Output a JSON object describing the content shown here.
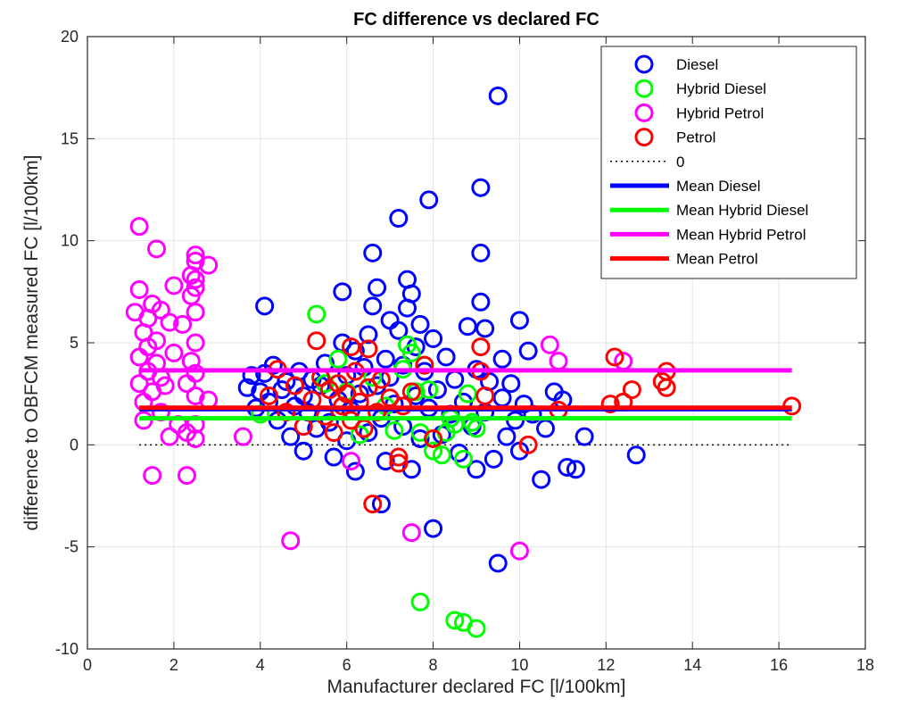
{
  "chart_data": {
    "type": "scatter",
    "title": "FC difference vs declared FC",
    "xlabel": "Manufacturer declared FC [l/100km]",
    "ylabel": "difference to OBFCM measured FC [l/100km]",
    "xlim": [
      0,
      18
    ],
    "ylim": [
      -10,
      20
    ],
    "xticks": [
      0,
      2,
      4,
      6,
      8,
      10,
      12,
      14,
      16,
      18
    ],
    "yticks": [
      -10,
      -5,
      0,
      5,
      10,
      15,
      20
    ],
    "grid": true,
    "legend_position": "top-right",
    "series": [
      {
        "name": "Diesel",
        "marker": "circle-open",
        "color": "#0000ff",
        "points": [
          [
            3.7,
            2.8
          ],
          [
            3.8,
            3.4
          ],
          [
            3.9,
            1.8
          ],
          [
            4.0,
            2.6
          ],
          [
            4.1,
            3.5
          ],
          [
            4.1,
            6.8
          ],
          [
            4.2,
            2.1
          ],
          [
            4.3,
            3.9
          ],
          [
            4.4,
            1.2
          ],
          [
            4.5,
            2.7
          ],
          [
            4.6,
            3.1
          ],
          [
            4.7,
            0.4
          ],
          [
            4.8,
            1.9
          ],
          [
            4.9,
            3.6
          ],
          [
            5.0,
            2.4
          ],
          [
            5.0,
            -0.3
          ],
          [
            5.1,
            1.6
          ],
          [
            5.2,
            3.2
          ],
          [
            5.3,
            0.8
          ],
          [
            5.4,
            2.9
          ],
          [
            5.5,
            4.0
          ],
          [
            5.6,
            1.1
          ],
          [
            5.7,
            -0.6
          ],
          [
            5.8,
            2.2
          ],
          [
            5.9,
            5.0
          ],
          [
            5.9,
            7.5
          ],
          [
            6.0,
            3.4
          ],
          [
            6.0,
            0.2
          ],
          [
            6.1,
            1.7
          ],
          [
            6.2,
            4.6
          ],
          [
            6.2,
            -1.3
          ],
          [
            6.3,
            2.5
          ],
          [
            6.4,
            3.8
          ],
          [
            6.5,
            5.4
          ],
          [
            6.5,
            0.6
          ],
          [
            6.6,
            9.4
          ],
          [
            6.6,
            6.8
          ],
          [
            6.7,
            7.7
          ],
          [
            6.7,
            2.9
          ],
          [
            6.8,
            -2.9
          ],
          [
            6.8,
            1.3
          ],
          [
            6.9,
            4.2
          ],
          [
            6.9,
            -0.8
          ],
          [
            7.0,
            6.1
          ],
          [
            7.0,
            3.3
          ],
          [
            7.1,
            2.0
          ],
          [
            7.2,
            11.1
          ],
          [
            7.2,
            5.6
          ],
          [
            7.3,
            0.9
          ],
          [
            7.3,
            3.9
          ],
          [
            7.4,
            8.1
          ],
          [
            7.4,
            6.7
          ],
          [
            7.5,
            7.4
          ],
          [
            7.5,
            -1.2
          ],
          [
            7.6,
            4.8
          ],
          [
            7.6,
            2.4
          ],
          [
            7.7,
            5.9
          ],
          [
            7.7,
            0.3
          ],
          [
            7.8,
            3.6
          ],
          [
            7.9,
            12.0
          ],
          [
            7.9,
            1.8
          ],
          [
            8.0,
            -4.1
          ],
          [
            8.0,
            5.2
          ],
          [
            8.1,
            2.7
          ],
          [
            8.2,
            0.5
          ],
          [
            8.3,
            4.3
          ],
          [
            8.4,
            1.5
          ],
          [
            8.5,
            3.2
          ],
          [
            8.6,
            -0.4
          ],
          [
            8.7,
            2.1
          ],
          [
            8.8,
            5.8
          ],
          [
            8.9,
            0.9
          ],
          [
            9.0,
            3.7
          ],
          [
            9.0,
            -1.2
          ],
          [
            9.1,
            12.6
          ],
          [
            9.1,
            9.4
          ],
          [
            9.1,
            7.0
          ],
          [
            9.2,
            5.7
          ],
          [
            9.2,
            1.6
          ],
          [
            9.3,
            3.1
          ],
          [
            9.4,
            -0.7
          ],
          [
            9.5,
            17.1
          ],
          [
            9.5,
            -5.8
          ],
          [
            9.6,
            4.2
          ],
          [
            9.6,
            2.3
          ],
          [
            9.7,
            0.4
          ],
          [
            9.8,
            3.0
          ],
          [
            9.9,
            1.2
          ],
          [
            10.0,
            6.1
          ],
          [
            10.0,
            -0.3
          ],
          [
            10.1,
            2.0
          ],
          [
            10.2,
            4.6
          ],
          [
            10.3,
            1.5
          ],
          [
            10.5,
            -1.7
          ],
          [
            10.6,
            0.8
          ],
          [
            10.8,
            2.6
          ],
          [
            11.0,
            2.2
          ],
          [
            11.1,
            -1.1
          ],
          [
            11.3,
            -1.2
          ],
          [
            11.5,
            0.4
          ],
          [
            12.7,
            -0.5
          ]
        ]
      },
      {
        "name": "Hybrid Diesel",
        "marker": "circle-open",
        "color": "#00ff00",
        "points": [
          [
            4.0,
            1.5
          ],
          [
            5.3,
            6.4
          ],
          [
            5.5,
            3.0
          ],
          [
            5.8,
            4.2
          ],
          [
            6.0,
            2.6
          ],
          [
            6.3,
            0.5
          ],
          [
            6.6,
            3.3
          ],
          [
            6.9,
            1.9
          ],
          [
            7.1,
            0.7
          ],
          [
            7.3,
            3.7
          ],
          [
            7.4,
            4.9
          ],
          [
            7.5,
            4.5
          ],
          [
            7.6,
            2.6
          ],
          [
            7.7,
            0.6
          ],
          [
            7.8,
            3.9
          ],
          [
            7.9,
            2.7
          ],
          [
            8.0,
            -0.3
          ],
          [
            8.2,
            -0.5
          ],
          [
            8.3,
            0.6
          ],
          [
            8.4,
            1.3
          ],
          [
            8.5,
            1.0
          ],
          [
            8.7,
            -0.7
          ],
          [
            8.8,
            2.5
          ],
          [
            8.9,
            1.1
          ],
          [
            9.0,
            0.8
          ],
          [
            7.7,
            -7.7
          ],
          [
            8.5,
            -8.6
          ],
          [
            8.7,
            -8.7
          ],
          [
            9.0,
            -9.0
          ]
        ]
      },
      {
        "name": "Hybrid Petrol",
        "marker": "circle-open",
        "color": "#ff00ff",
        "points": [
          [
            1.1,
            6.5
          ],
          [
            1.2,
            10.7
          ],
          [
            1.2,
            7.6
          ],
          [
            1.2,
            4.3
          ],
          [
            1.2,
            3.0
          ],
          [
            1.3,
            5.5
          ],
          [
            1.3,
            2.1
          ],
          [
            1.3,
            1.2
          ],
          [
            1.4,
            6.2
          ],
          [
            1.4,
            4.8
          ],
          [
            1.4,
            3.6
          ],
          [
            1.5,
            6.9
          ],
          [
            1.5,
            -1.5
          ],
          [
            1.5,
            2.6
          ],
          [
            1.6,
            9.6
          ],
          [
            1.6,
            5.1
          ],
          [
            1.6,
            4.0
          ],
          [
            1.7,
            6.6
          ],
          [
            1.7,
            3.3
          ],
          [
            1.7,
            1.6
          ],
          [
            1.8,
            2.9
          ],
          [
            1.9,
            0.4
          ],
          [
            1.9,
            6.0
          ],
          [
            2.0,
            7.8
          ],
          [
            2.0,
            4.5
          ],
          [
            2.1,
            1.0
          ],
          [
            2.2,
            5.9
          ],
          [
            2.3,
            0.6
          ],
          [
            2.3,
            3.0
          ],
          [
            2.3,
            -1.5
          ],
          [
            2.4,
            4.1
          ],
          [
            2.4,
            7.3
          ],
          [
            2.4,
            8.3
          ],
          [
            2.5,
            9.3
          ],
          [
            2.5,
            9.0
          ],
          [
            2.5,
            8.1
          ],
          [
            2.5,
            7.7
          ],
          [
            2.5,
            6.5
          ],
          [
            2.5,
            5.0
          ],
          [
            2.5,
            3.5
          ],
          [
            2.5,
            2.4
          ],
          [
            2.5,
            1.0
          ],
          [
            2.5,
            0.3
          ],
          [
            2.8,
            8.8
          ],
          [
            2.8,
            2.2
          ],
          [
            3.6,
            0.4
          ],
          [
            4.7,
            -4.7
          ],
          [
            6.1,
            -0.8
          ],
          [
            7.5,
            -4.3
          ],
          [
            10.0,
            -5.2
          ],
          [
            10.7,
            4.9
          ],
          [
            10.9,
            4.1
          ],
          [
            12.4,
            4.1
          ]
        ]
      },
      {
        "name": "Petrol",
        "marker": "circle-open",
        "color": "#ff0000",
        "points": [
          [
            4.2,
            2.4
          ],
          [
            4.4,
            3.7
          ],
          [
            4.6,
            1.6
          ],
          [
            4.8,
            2.9
          ],
          [
            5.0,
            0.9
          ],
          [
            5.2,
            2.2
          ],
          [
            5.3,
            5.1
          ],
          [
            5.4,
            3.3
          ],
          [
            5.5,
            1.4
          ],
          [
            5.6,
            2.7
          ],
          [
            5.7,
            0.6
          ],
          [
            5.8,
            3.0
          ],
          [
            5.9,
            1.9
          ],
          [
            6.0,
            2.5
          ],
          [
            6.1,
            4.8
          ],
          [
            6.1,
            1.2
          ],
          [
            6.2,
            3.6
          ],
          [
            6.3,
            2.1
          ],
          [
            6.4,
            0.8
          ],
          [
            6.5,
            4.7
          ],
          [
            6.5,
            2.8
          ],
          [
            6.6,
            -2.9
          ],
          [
            6.7,
            1.6
          ],
          [
            6.8,
            3.2
          ],
          [
            7.0,
            2.3
          ],
          [
            7.2,
            -0.9
          ],
          [
            7.2,
            -0.6
          ],
          [
            7.3,
            1.9
          ],
          [
            7.5,
            2.6
          ],
          [
            7.8,
            3.9
          ],
          [
            8.0,
            0.3
          ],
          [
            9.1,
            4.8
          ],
          [
            9.1,
            3.6
          ],
          [
            9.2,
            2.4
          ],
          [
            10.2,
            0.0
          ],
          [
            10.9,
            1.7
          ],
          [
            12.1,
            2.0
          ],
          [
            12.2,
            4.3
          ],
          [
            12.4,
            2.1
          ],
          [
            12.6,
            2.7
          ],
          [
            13.4,
            3.6
          ],
          [
            13.4,
            2.8
          ],
          [
            13.3,
            3.1
          ],
          [
            16.3,
            1.9
          ]
        ]
      }
    ],
    "reference_line": {
      "name": "0",
      "y": 0,
      "x_range": [
        1.2,
        16.3
      ],
      "style": "dotted",
      "color": "#000000"
    },
    "mean_lines": [
      {
        "name": "Mean Diesel",
        "y": 1.75,
        "x_range": [
          1.2,
          16.3
        ],
        "color": "#0000ff"
      },
      {
        "name": "Mean Hybrid Diesel",
        "y": 1.3,
        "x_range": [
          1.2,
          16.3
        ],
        "color": "#00ff00"
      },
      {
        "name": "Mean Hybrid Petrol",
        "y": 3.65,
        "x_range": [
          1.2,
          16.3
        ],
        "color": "#ff00ff"
      },
      {
        "name": "Mean Petrol",
        "y": 1.82,
        "x_range": [
          1.2,
          16.3
        ],
        "color": "#ff0000"
      }
    ],
    "legend": [
      {
        "label": "Diesel",
        "kind": "marker",
        "color": "#0000ff"
      },
      {
        "label": "Hybrid Diesel",
        "kind": "marker",
        "color": "#00ff00"
      },
      {
        "label": "Hybrid Petrol",
        "kind": "marker",
        "color": "#ff00ff"
      },
      {
        "label": "Petrol",
        "kind": "marker",
        "color": "#ff0000"
      },
      {
        "label": "0",
        "kind": "dotted",
        "color": "#000000"
      },
      {
        "label": "Mean Diesel",
        "kind": "line",
        "color": "#0000ff"
      },
      {
        "label": "Mean Hybrid Diesel",
        "kind": "line",
        "color": "#00ff00"
      },
      {
        "label": "Mean Hybrid Petrol",
        "kind": "line",
        "color": "#ff00ff"
      },
      {
        "label": "Mean Petrol",
        "kind": "line",
        "color": "#ff0000"
      }
    ]
  }
}
